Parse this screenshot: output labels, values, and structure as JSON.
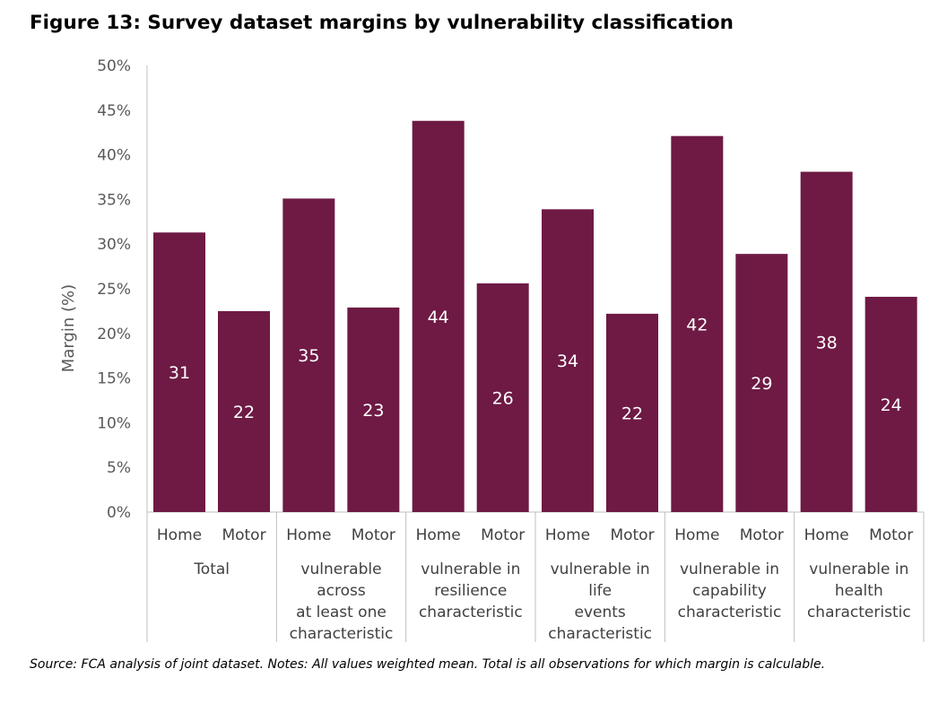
{
  "figure": {
    "title": "Figure 13: Survey dataset margins by vulnerability classification",
    "note": "Source: FCA analysis of joint dataset. Notes: All values weighted mean. Total is all observations for which margin is calculable."
  },
  "colors": {
    "bar": "#6e1a44",
    "axis": "#bfbfbf",
    "text": "#595959"
  },
  "chart_data": {
    "type": "bar",
    "ylabel": "Margin (%)",
    "ylim": [
      0,
      50
    ],
    "y_tick_values": [
      0,
      5,
      10,
      15,
      20,
      25,
      30,
      35,
      40,
      45,
      50
    ],
    "y_tick_labels": [
      "0%",
      "5%",
      "10%",
      "15%",
      "20%",
      "25%",
      "30%",
      "35%",
      "40%",
      "45%",
      "50%"
    ],
    "grid": false,
    "legend": "none",
    "groups": [
      {
        "label_lines": [
          "Total"
        ],
        "subcategories": [
          "Home",
          "Motor"
        ],
        "values": [
          31.3,
          22.5
        ],
        "data_labels": [
          "31",
          "22"
        ]
      },
      {
        "label_lines": [
          "vulnerable",
          "across",
          "at least one",
          "characteristic"
        ],
        "subcategories": [
          "Home",
          "Motor"
        ],
        "values": [
          35.1,
          22.9
        ],
        "data_labels": [
          "35",
          "23"
        ]
      },
      {
        "label_lines": [
          "vulnerable in",
          "resilience",
          "characteristic"
        ],
        "subcategories": [
          "Home",
          "Motor"
        ],
        "values": [
          43.8,
          25.6
        ],
        "data_labels": [
          "44",
          "26"
        ]
      },
      {
        "label_lines": [
          "vulnerable in",
          "life",
          "events",
          "characteristic"
        ],
        "subcategories": [
          "Home",
          "Motor"
        ],
        "values": [
          33.9,
          22.2
        ],
        "data_labels": [
          "34",
          "22"
        ]
      },
      {
        "label_lines": [
          "vulnerable in",
          "capability",
          "characteristic"
        ],
        "subcategories": [
          "Home",
          "Motor"
        ],
        "values": [
          42.1,
          28.9
        ],
        "data_labels": [
          "42",
          "29"
        ]
      },
      {
        "label_lines": [
          "vulnerable in",
          "health",
          "characteristic"
        ],
        "subcategories": [
          "Home",
          "Motor"
        ],
        "values": [
          38.1,
          24.1
        ],
        "data_labels": [
          "38",
          "24"
        ]
      }
    ]
  }
}
